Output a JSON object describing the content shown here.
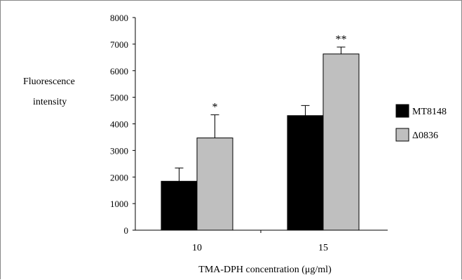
{
  "chart_data": {
    "type": "bar",
    "title": "",
    "ylabel": "Fluorescence intensity",
    "ylabel_lines": [
      "Fluorescence",
      "intensity"
    ],
    "xlabel": "TMA-DPH concentration (μg/ml)",
    "categories": [
      "10",
      "15"
    ],
    "ylim": [
      0,
      8000
    ],
    "yticks": [
      0,
      1000,
      2000,
      3000,
      4000,
      5000,
      6000,
      7000,
      8000
    ],
    "series": [
      {
        "name": "MT8148",
        "values": [
          1840,
          4310
        ],
        "errors": [
          500,
          380
        ],
        "color": "#000000"
      },
      {
        "name": "Δ0836",
        "values": [
          3470,
          6630
        ],
        "errors": [
          870,
          260
        ],
        "color": "#bfbfbf"
      }
    ],
    "annotations": [
      {
        "category": "10",
        "series": "Δ0836",
        "text": "*"
      },
      {
        "category": "15",
        "series": "Δ0836",
        "text": "**"
      }
    ],
    "grid": false,
    "legend_position": "right"
  }
}
